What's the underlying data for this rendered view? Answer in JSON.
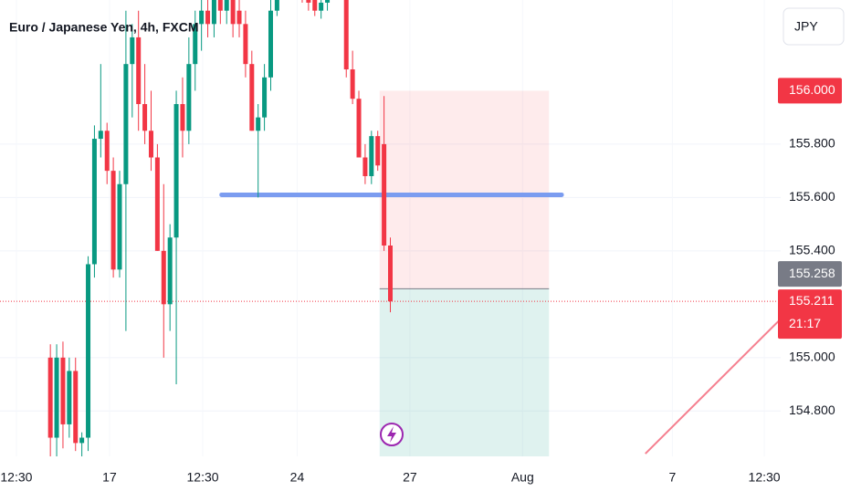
{
  "chart_data": {
    "type": "candlestick",
    "title": "Euro / Japanese Yen, 4h, FXCM",
    "currency": "JPY",
    "xlim": [
      0,
      124
    ],
    "ylim": [
      154.63,
      156.34
    ],
    "xticks": [
      {
        "value": 2.6,
        "label": "12:30"
      },
      {
        "value": 17.4,
        "label": "17"
      },
      {
        "value": 32.2,
        "label": "12:30"
      },
      {
        "value": 47.2,
        "label": "24"
      },
      {
        "value": 65.1,
        "label": "27"
      },
      {
        "value": 83.0,
        "label": "Aug"
      },
      {
        "value": 106.8,
        "label": "7"
      },
      {
        "value": 121.4,
        "label": "12:30"
      }
    ],
    "yticks": [
      {
        "value": 154.8,
        "label": "154.800"
      },
      {
        "value": 155.0,
        "label": "155.000"
      },
      {
        "value": 155.4,
        "label": "155.400"
      },
      {
        "value": 155.6,
        "label": "155.600"
      },
      {
        "value": 155.8,
        "label": "155.800"
      }
    ],
    "grid": true,
    "colors": {
      "up": "#089981",
      "down": "#f23645"
    },
    "candles": {
      "x": [
        8,
        9,
        10,
        11,
        12,
        13,
        14,
        15,
        16,
        17,
        18,
        19,
        20,
        21,
        22,
        23,
        24,
        25,
        26,
        27,
        28,
        29,
        30,
        31,
        32,
        33,
        34,
        35,
        36,
        37,
        38,
        39,
        40,
        41,
        42,
        43,
        44,
        45,
        46,
        47,
        48,
        49,
        50,
        51,
        52,
        53,
        54,
        55,
        56,
        57,
        58,
        59,
        60,
        61,
        62
      ],
      "open": [
        155.0,
        154.7,
        155.0,
        154.75,
        154.95,
        154.68,
        154.7,
        155.35,
        155.82,
        155.85,
        155.7,
        155.33,
        155.65,
        156.1,
        156.2,
        155.95,
        155.85,
        155.75,
        155.4,
        155.2,
        155.45,
        155.95,
        155.85,
        156.1,
        156.25,
        156.3,
        156.25,
        156.4,
        156.3,
        156.45,
        156.3,
        156.25,
        156.1,
        155.85,
        155.9,
        156.05,
        156.3,
        156.45,
        156.55,
        156.45,
        156.4,
        156.36,
        156.34,
        156.3,
        156.33,
        156.42,
        156.45,
        156.42,
        156.08,
        155.97,
        155.75,
        155.68,
        155.83,
        155.8,
        155.42
      ],
      "high": [
        155.05,
        155.05,
        155.06,
        155.0,
        155.0,
        154.72,
        155.38,
        155.87,
        156.1,
        155.88,
        155.75,
        155.7,
        156.3,
        156.25,
        156.3,
        156.1,
        156.0,
        155.8,
        155.65,
        155.5,
        156.0,
        156.05,
        156.2,
        156.3,
        156.4,
        156.4,
        156.45,
        156.45,
        156.5,
        156.5,
        156.4,
        156.3,
        156.15,
        155.95,
        156.1,
        156.35,
        156.5,
        156.6,
        156.6,
        156.55,
        156.45,
        156.42,
        156.36,
        156.34,
        156.45,
        156.5,
        156.5,
        156.45,
        156.15,
        156.0,
        155.8,
        155.85,
        155.85,
        155.98,
        155.45
      ],
      "low": [
        154.63,
        154.63,
        154.66,
        154.7,
        154.65,
        154.6,
        154.65,
        155.3,
        155.75,
        155.65,
        155.3,
        155.3,
        155.1,
        155.9,
        155.85,
        155.8,
        155.7,
        155.4,
        155.0,
        155.1,
        154.9,
        155.75,
        155.8,
        156.0,
        156.15,
        156.2,
        156.2,
        156.25,
        156.25,
        156.2,
        156.2,
        156.05,
        155.85,
        155.6,
        155.85,
        156.0,
        156.28,
        156.4,
        156.42,
        156.38,
        156.33,
        156.3,
        156.28,
        156.27,
        156.3,
        156.38,
        156.4,
        156.05,
        155.95,
        155.75,
        155.65,
        155.65,
        155.7,
        155.4,
        155.17
      ],
      "close": [
        154.7,
        155.0,
        154.75,
        154.95,
        154.68,
        154.7,
        155.35,
        155.82,
        155.85,
        155.7,
        155.33,
        155.65,
        156.1,
        156.2,
        155.95,
        155.85,
        155.75,
        155.4,
        155.2,
        155.45,
        155.95,
        155.85,
        156.1,
        156.25,
        156.3,
        156.25,
        156.4,
        156.3,
        156.45,
        156.25,
        156.25,
        156.1,
        155.85,
        155.9,
        156.05,
        156.3,
        156.45,
        156.55,
        156.45,
        156.4,
        156.36,
        156.33,
        156.3,
        156.33,
        156.42,
        156.45,
        156.42,
        156.08,
        155.97,
        155.75,
        155.68,
        155.83,
        155.72,
        155.42,
        155.211
      ]
    },
    "level": {
      "value": 155.61,
      "x": [
        35.2,
        89.2
      ],
      "color": "#7b9cf0"
    },
    "position": {
      "x": [
        60.3,
        87.2
      ],
      "stop": {
        "value": 156.0,
        "label": "156.000"
      },
      "entry": {
        "value": 155.258,
        "label": "155.258"
      },
      "target": 154.63
    },
    "trend_line": {
      "x": [
        102.5,
        124
      ],
      "y": [
        154.64,
        155.145
      ],
      "color": "#f57f8f"
    },
    "last_price": {
      "value": 155.211,
      "label": "155.211",
      "countdown": "21:17"
    }
  }
}
